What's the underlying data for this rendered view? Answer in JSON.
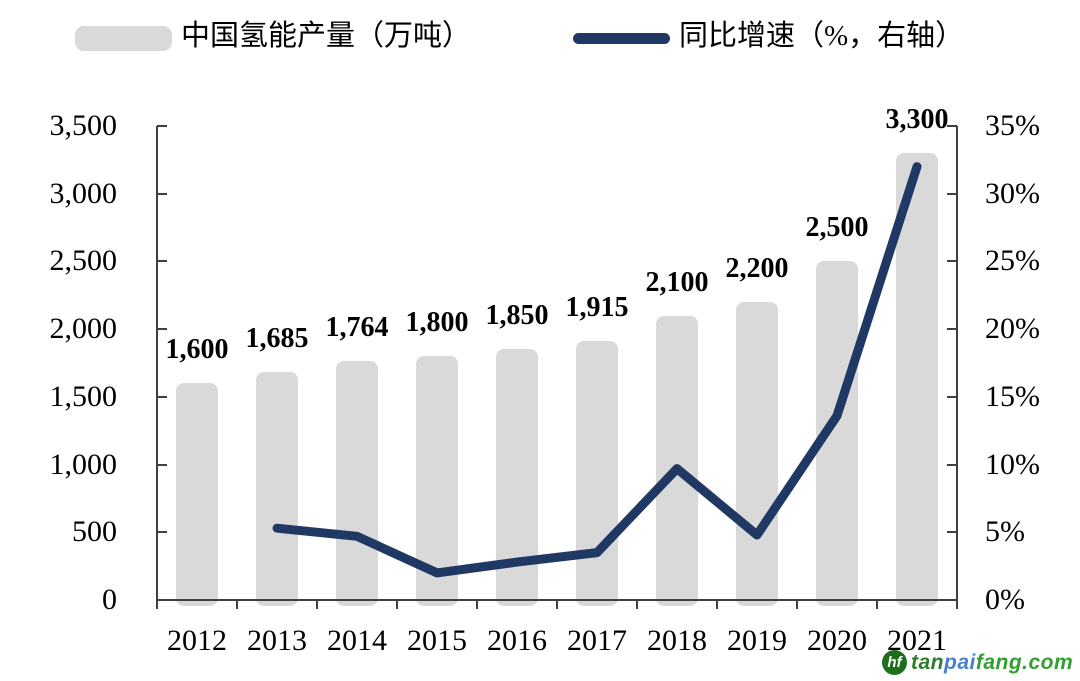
{
  "legend": {
    "bars_label": "中国氢能产量（万吨）",
    "line_label": "同比增速（%，右轴）"
  },
  "chart_data": {
    "type": "bar",
    "categories": [
      "2012",
      "2013",
      "2014",
      "2015",
      "2016",
      "2017",
      "2018",
      "2019",
      "2020",
      "2021"
    ],
    "series": [
      {
        "name": "中国氢能产量（万吨）",
        "type": "bar",
        "axis": "left",
        "color": "#d9d9d9",
        "values": [
          1600,
          1685,
          1764,
          1800,
          1850,
          1915,
          2100,
          2200,
          2500,
          3300
        ],
        "labels": [
          "1,600",
          "1,685",
          "1,764",
          "1,800",
          "1,850",
          "1,915",
          "2,100",
          "2,200",
          "2,500",
          "3,300"
        ]
      },
      {
        "name": "同比增速（%，右轴）",
        "type": "line",
        "axis": "right",
        "color": "#1f3864",
        "values": [
          null,
          5.3,
          4.7,
          2.0,
          2.8,
          3.5,
          9.7,
          4.8,
          13.6,
          32.0
        ]
      }
    ],
    "left_axis": {
      "min": 0,
      "max": 3500,
      "ticks": [
        "3,500",
        "3,000",
        "2,500",
        "2,000",
        "1,500",
        "1,000",
        "500",
        "0"
      ]
    },
    "right_axis": {
      "min": 0,
      "max": 35,
      "ticks": [
        "35%",
        "30%",
        "25%",
        "20%",
        "15%",
        "10%",
        "5%",
        "0%"
      ]
    },
    "grid": false,
    "legend_position": "top"
  },
  "watermark": {
    "icon": "leaf-logo-icon",
    "icon_glyph": "hf",
    "icon_color": "#1d6f1d",
    "parts": [
      {
        "text": "tan",
        "color": "#2e7d2e"
      },
      {
        "text": "pai",
        "color": "#4a7fd0"
      },
      {
        "text": "fang.com",
        "color": "#2fa02f"
      }
    ]
  }
}
